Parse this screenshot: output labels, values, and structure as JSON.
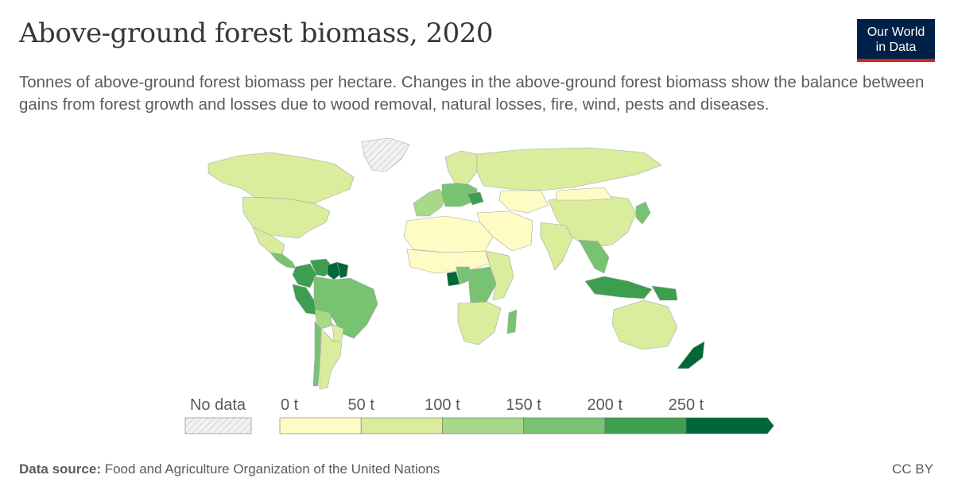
{
  "title": "Above-ground forest biomass, 2020",
  "subtitle": "Tonnes of above-ground forest biomass per hectare. Changes in the above-ground forest biomass show the balance between gains from forest growth and losses due to wood removal, natural losses, fire, wind, pests and diseases.",
  "logo": {
    "line1": "Our World",
    "line2": "in Data",
    "bg": "#002147",
    "accent": "#ce261e"
  },
  "footer": {
    "source_label": "Data source:",
    "source_text": "Food and Agriculture Organization of the United Nations",
    "license": "CC BY"
  },
  "chart_data": {
    "type": "choropleth",
    "unit": "t",
    "legend": {
      "no_data_label": "No data",
      "bins": [
        {
          "label": "0 t",
          "color": "#fefbc5"
        },
        {
          "label": "50 t",
          "color": "#d9ed9d"
        },
        {
          "label": "100 t",
          "color": "#a8d989"
        },
        {
          "label": "150 t",
          "color": "#78c371"
        },
        {
          "label": "200 t",
          "color": "#3d9e4f"
        },
        {
          "label": "250 t",
          "color": "#006837"
        }
      ]
    },
    "regions": [
      {
        "name": "Canada",
        "class": 1
      },
      {
        "name": "United States",
        "class": 1
      },
      {
        "name": "Mexico",
        "class": 1
      },
      {
        "name": "Central America",
        "class": 3
      },
      {
        "name": "Colombia",
        "class": 4
      },
      {
        "name": "Venezuela",
        "class": 4
      },
      {
        "name": "Guyana",
        "class": 5
      },
      {
        "name": "French Guiana",
        "class": 5
      },
      {
        "name": "Peru",
        "class": 4
      },
      {
        "name": "Brazil",
        "class": 3
      },
      {
        "name": "Bolivia",
        "class": 2
      },
      {
        "name": "Paraguay",
        "class": 1
      },
      {
        "name": "Argentina",
        "class": 1
      },
      {
        "name": "Chile",
        "class": 3
      },
      {
        "name": "Greenland",
        "class": null
      },
      {
        "name": "Europe (west)",
        "class": 2
      },
      {
        "name": "Central Europe",
        "class": 3
      },
      {
        "name": "Romania",
        "class": 4
      },
      {
        "name": "Scandinavia",
        "class": 1
      },
      {
        "name": "Russia",
        "class": 1
      },
      {
        "name": "Kazakhstan",
        "class": 0
      },
      {
        "name": "Middle East",
        "class": 0
      },
      {
        "name": "China",
        "class": 1
      },
      {
        "name": "Mongolia",
        "class": 0
      },
      {
        "name": "India",
        "class": 1
      },
      {
        "name": "Southeast Asia",
        "class": 3
      },
      {
        "name": "Indonesia",
        "class": 4
      },
      {
        "name": "Papua New Guinea",
        "class": 4
      },
      {
        "name": "Japan",
        "class": 3
      },
      {
        "name": "North Africa",
        "class": 0
      },
      {
        "name": "Sahel",
        "class": 0
      },
      {
        "name": "Gabon",
        "class": 5
      },
      {
        "name": "Congo",
        "class": 3
      },
      {
        "name": "DR Congo",
        "class": 3
      },
      {
        "name": "East Africa",
        "class": 1
      },
      {
        "name": "Southern Africa",
        "class": 1
      },
      {
        "name": "Madagascar",
        "class": 3
      },
      {
        "name": "Australia",
        "class": 1
      },
      {
        "name": "New Zealand",
        "class": 5
      }
    ]
  }
}
